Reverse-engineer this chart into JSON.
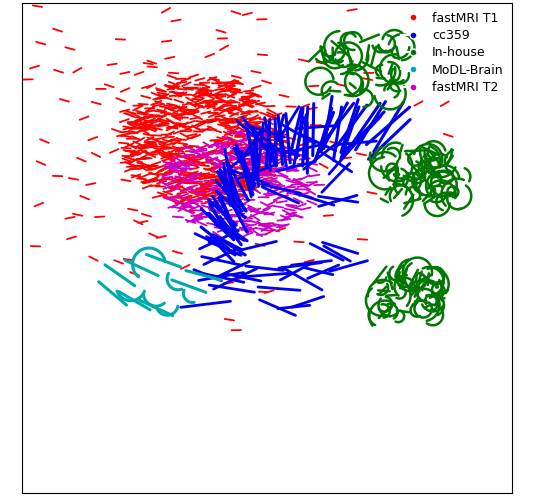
{
  "legend_labels": [
    "fastMRI T1",
    "cc359",
    "In-house",
    "MoDL-Brain",
    "fastMRI T2"
  ],
  "legend_colors": [
    "#ff0000",
    "#0000ee",
    "#007700",
    "#00aaaa",
    "#cc00cc"
  ],
  "figsize": [
    5.34,
    4.96
  ],
  "dpi": 100,
  "bg_color": "#ffffff",
  "xlim": [
    -6.5,
    7.0
  ],
  "ylim": [
    -7.5,
    6.0
  ]
}
